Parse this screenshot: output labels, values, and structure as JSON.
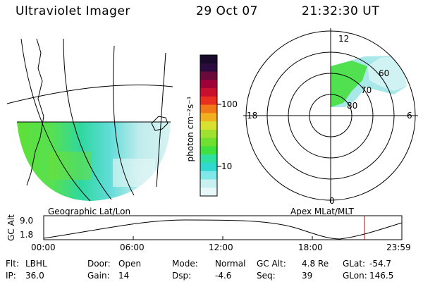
{
  "header": {
    "instrument": "Ultraviolet Imager",
    "date": "29 Oct 07",
    "time": "21:32:30 UT"
  },
  "colorbar": {
    "label": "photon cm⁻²s⁻¹",
    "ticks": [
      "100",
      "10"
    ],
    "colors": [
      "#1a0a2a",
      "#2b0a3d",
      "#6a0a3a",
      "#a0003a",
      "#c8102e",
      "#e83020",
      "#f07818",
      "#f0b020",
      "#d8e030",
      "#a0e030",
      "#70e030",
      "#40e040",
      "#30e0a0",
      "#30d8d0",
      "#80e8e8",
      "#c8f0f0",
      "#e8f8f8"
    ]
  },
  "geographic_panel": {
    "label": "Geographic Lat/Lon"
  },
  "polar_panel": {
    "label": "Apex MLat/MLT",
    "mlt_labels": {
      "top": "12",
      "left": "18",
      "right": "6",
      "bottom": "0"
    },
    "lat_labels": [
      "60",
      "70",
      "80"
    ]
  },
  "altitude_plot": {
    "ylabel": "GC Alt",
    "yticks": [
      "9.0",
      "1.8"
    ],
    "xticks": [
      "00:00",
      "06:00",
      "12:00",
      "18:00",
      "23:59"
    ],
    "marker_color": "#d00000",
    "marker_time_frac": 0.896
  },
  "status": {
    "row1": [
      {
        "k": "Flt:",
        "v": "LBHL"
      },
      {
        "k": "Door:",
        "v": "Open"
      },
      {
        "k": "Mode:",
        "v": "Normal"
      },
      {
        "k": "GC Alt:",
        "v": "4.8 Re"
      },
      {
        "k": "GLat:",
        "v": "-54.7"
      }
    ],
    "row2": [
      {
        "k": "IP:",
        "v": "36.0"
      },
      {
        "k": "Gain:",
        "v": "14"
      },
      {
        "k": "Dsp:",
        "v": "-4.6"
      },
      {
        "k": "Seq:",
        "v": "39"
      },
      {
        "k": "GLon:",
        "v": "146.5"
      }
    ]
  }
}
